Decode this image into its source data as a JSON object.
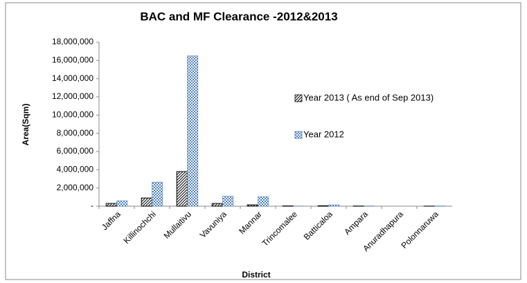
{
  "chart_data": {
    "type": "bar",
    "title": "BAC and MF Clearance -2012&2013",
    "x_label": "District",
    "y_label": "Area(Sqm)",
    "categories": [
      "Jaffna",
      "Killinochchi",
      "Mullaitivu",
      "Vavuniya",
      "Mannar",
      "Trincomalee",
      "Batticaloa",
      "Ampara",
      "Anuradhapura",
      "Polonnaruwa"
    ],
    "series": [
      {
        "name": "Year 2013  ( As end of Sep 2013)",
        "color": "#000000",
        "values": [
          300000,
          900000,
          3800000,
          300000,
          150000,
          30000,
          50000,
          20000,
          0,
          10000
        ]
      },
      {
        "name": "Year 2012",
        "color": "#4f81bd",
        "values": [
          600000,
          2650000,
          16500000,
          1100000,
          1050000,
          20000,
          150000,
          30000,
          0,
          30000
        ]
      }
    ],
    "ylim": [
      0,
      18000000
    ],
    "yticks": [
      {
        "value": 0,
        "label": "-"
      },
      {
        "value": 2000000,
        "label": "2,000,000"
      },
      {
        "value": 4000000,
        "label": "4,000,000"
      },
      {
        "value": 6000000,
        "label": "6,000,000"
      },
      {
        "value": 8000000,
        "label": "8,000,000"
      },
      {
        "value": 10000000,
        "label": "10,000,000"
      },
      {
        "value": 12000000,
        "label": "12,000,000"
      },
      {
        "value": 14000000,
        "label": "14,000,000"
      },
      {
        "value": 16000000,
        "label": "16,000,000"
      },
      {
        "value": 18000000,
        "label": "18,000,000"
      }
    ],
    "grid": false,
    "legend": "right"
  }
}
